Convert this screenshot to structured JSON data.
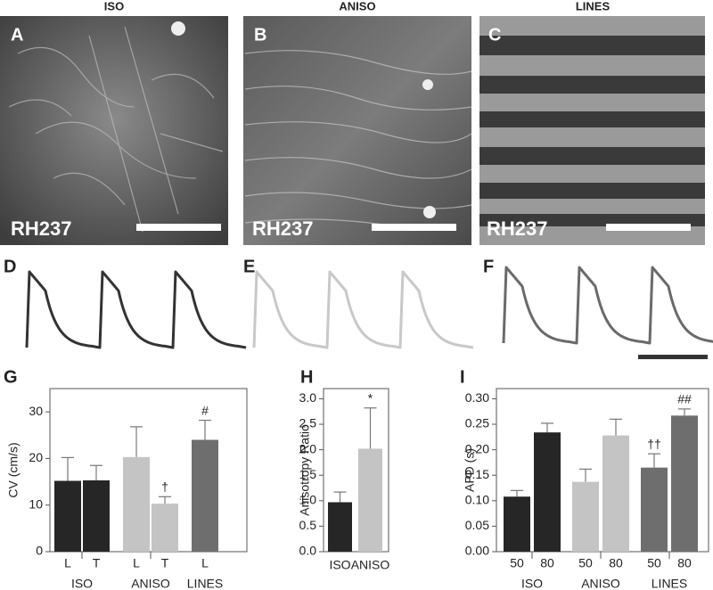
{
  "column_titles": [
    "ISO",
    "ANISO",
    "LINES"
  ],
  "panel_labels": [
    "A",
    "B",
    "C",
    "D",
    "E",
    "F",
    "G",
    "H",
    "I"
  ],
  "image_labels": [
    "RH237",
    "RH237",
    "RH237"
  ],
  "chart_data": [
    {
      "type": "bar",
      "ylabel": "CV (cm/s)",
      "ylim": [
        0,
        35
      ],
      "yticks": [
        0,
        10,
        20,
        30
      ],
      "groups": [
        {
          "label": "ISO",
          "color": "#262626",
          "categories": [
            "L",
            "T"
          ],
          "values": [
            15.2,
            15.3
          ],
          "errors": [
            5,
            3.2
          ],
          "value_notes": [
            null,
            null
          ]
        },
        {
          "label": "ANISO",
          "color": "#c4c4c4",
          "categories": [
            "L",
            "T"
          ],
          "values": [
            20.3,
            10.3
          ],
          "errors": [
            6.5,
            1.5
          ],
          "value_notes": [
            null,
            "†"
          ]
        },
        {
          "label": "LINES",
          "color": "#6e6e6e",
          "categories": [
            "L"
          ],
          "values": [
            24
          ],
          "errors": [
            4.2
          ],
          "value_notes": [
            "#"
          ]
        }
      ]
    },
    {
      "type": "bar",
      "ylabel": "Anisotropy Ratio",
      "ylim": [
        0,
        3.2
      ],
      "yticks": [
        {
          "value": 0,
          "label": "0.0"
        },
        0.5,
        {
          "value": 1,
          "label": "1.0"
        },
        1.5,
        {
          "value": 2,
          "label": "2.0"
        },
        2.5,
        {
          "value": 3,
          "label": "3.0"
        }
      ],
      "groups": [
        {
          "label": "ISO",
          "color": "#262626",
          "values": [
            0.97
          ],
          "errors": [
            0.2
          ],
          "value_notes": [
            null
          ]
        },
        {
          "label": "ANISO",
          "color": "#c4c4c4",
          "values": [
            2.02
          ],
          "errors": [
            0.8
          ],
          "value_notes": [
            "*"
          ]
        }
      ]
    },
    {
      "type": "bar",
      "ylabel": "APD (s)",
      "ylim": [
        0,
        0.32
      ],
      "yticks": [
        {
          "value": 0,
          "label": "0.00"
        },
        0.05,
        {
          "value": 0.1,
          "label": "0.10"
        },
        0.15,
        {
          "value": 0.2,
          "label": "0.20"
        },
        0.25,
        {
          "value": 0.3,
          "label": "0.30"
        }
      ],
      "groups": [
        {
          "label": "ISO",
          "color": "#262626",
          "categories": [
            "50",
            "80"
          ],
          "values": [
            0.108,
            0.234
          ],
          "errors": [
            0.012,
            0.018
          ],
          "value_notes": [
            null,
            null
          ]
        },
        {
          "label": "ANISO",
          "color": "#c4c4c4",
          "categories": [
            "50",
            "80"
          ],
          "values": [
            0.137,
            0.228
          ],
          "errors": [
            0.025,
            0.032
          ],
          "value_notes": [
            null,
            null
          ]
        },
        {
          "label": "LINES",
          "color": "#6e6e6e",
          "categories": [
            "50",
            "80"
          ],
          "values": [
            0.165,
            0.267
          ],
          "errors": [
            0.027,
            0.013
          ],
          "value_notes": [
            "††",
            "##"
          ]
        }
      ]
    }
  ]
}
